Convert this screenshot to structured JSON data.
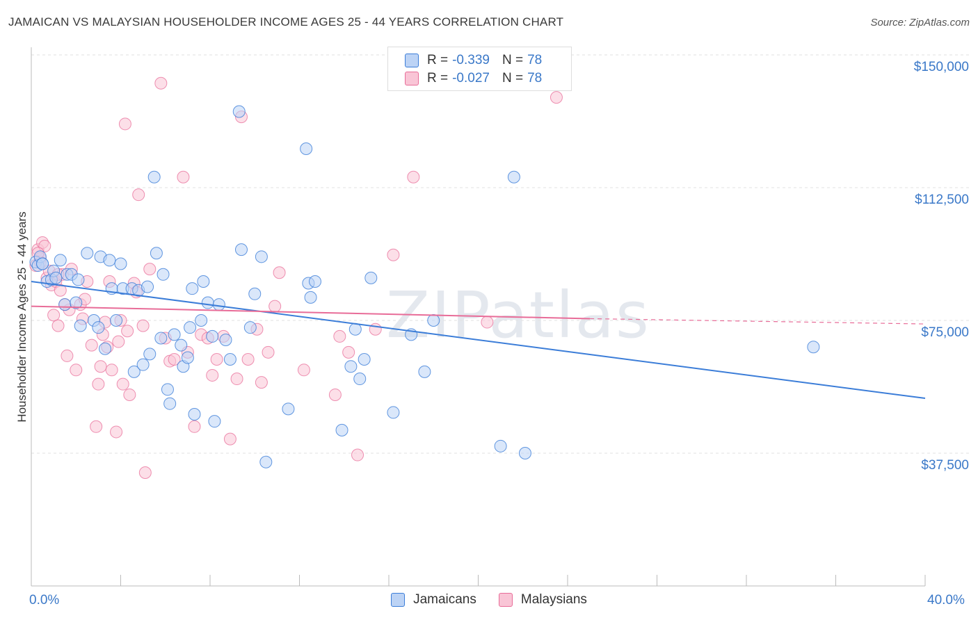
{
  "title": "JAMAICAN VS MALAYSIAN HOUSEHOLDER INCOME AGES 25 - 44 YEARS CORRELATION CHART",
  "source": "Source: ZipAtlas.com",
  "watermark": "ZIPatlas",
  "legend_top": [
    {
      "r_label": "R =",
      "r_value": "-0.339",
      "n_label": "N =",
      "n_value": "78"
    },
    {
      "r_label": "R =",
      "r_value": "-0.027",
      "n_label": "N =",
      "n_value": "78"
    }
  ],
  "legend_bottom": [
    "Jamaicans",
    "Malaysians"
  ],
  "colors": {
    "jamaicans": "#3b7dd8",
    "malaysians": "#e86c98",
    "jam_fill": "#bcd3f5",
    "mal_fill": "#f9c5d6",
    "tick_text": "#3a78c8",
    "grid": "#e2e2e2"
  },
  "chart_data": {
    "type": "scatter",
    "xlabel": "",
    "ylabel": "Householder Income Ages 25 - 44 years",
    "xlim": [
      0,
      40
    ],
    "ylim": [
      0,
      150000
    ],
    "x_tick_labels": [
      "0.0%",
      "40.0%"
    ],
    "y_ticks": [
      37500,
      75000,
      112500,
      150000
    ],
    "y_tick_labels": [
      "$37,500",
      "$75,000",
      "$112,500",
      "$150,000"
    ],
    "grid": true,
    "series": [
      {
        "name": "Jamaicans",
        "r": -0.339,
        "n": 78,
        "trend": {
          "x": [
            0,
            40
          ],
          "y": [
            86000,
            53000
          ]
        },
        "points": [
          [
            0.2,
            91500
          ],
          [
            0.3,
            90500
          ],
          [
            0.4,
            93000
          ],
          [
            0.5,
            91000
          ],
          [
            0.7,
            86000
          ],
          [
            0.9,
            86500
          ],
          [
            1.0,
            89000
          ],
          [
            1.1,
            87000
          ],
          [
            1.3,
            92000
          ],
          [
            1.5,
            79500
          ],
          [
            1.6,
            88000
          ],
          [
            1.8,
            88000
          ],
          [
            2.0,
            80000
          ],
          [
            2.2,
            73500
          ],
          [
            2.5,
            94000
          ],
          [
            2.8,
            75000
          ],
          [
            3.0,
            73000
          ],
          [
            3.1,
            93000
          ],
          [
            3.3,
            67000
          ],
          [
            3.5,
            92000
          ],
          [
            3.6,
            84000
          ],
          [
            3.8,
            75000
          ],
          [
            4.0,
            91000
          ],
          [
            4.1,
            84000
          ],
          [
            4.5,
            84000
          ],
          [
            4.6,
            60500
          ],
          [
            4.8,
            83500
          ],
          [
            5.0,
            62500
          ],
          [
            5.2,
            84500
          ],
          [
            5.3,
            65500
          ],
          [
            5.5,
            115500
          ],
          [
            5.6,
            94000
          ],
          [
            5.8,
            70000
          ],
          [
            5.9,
            88000
          ],
          [
            6.1,
            55500
          ],
          [
            6.2,
            51500
          ],
          [
            6.4,
            71000
          ],
          [
            6.7,
            68000
          ],
          [
            6.8,
            62000
          ],
          [
            7.0,
            64500
          ],
          [
            7.1,
            73000
          ],
          [
            7.2,
            84000
          ],
          [
            7.3,
            48500
          ],
          [
            7.6,
            75000
          ],
          [
            7.7,
            86000
          ],
          [
            7.9,
            80000
          ],
          [
            8.1,
            70500
          ],
          [
            8.2,
            46500
          ],
          [
            8.4,
            79500
          ],
          [
            8.7,
            69500
          ],
          [
            8.9,
            64000
          ],
          [
            9.4,
            95000
          ],
          [
            9.8,
            73000
          ],
          [
            10.0,
            82500
          ],
          [
            10.3,
            93000
          ],
          [
            10.5,
            35000
          ],
          [
            11.5,
            50000
          ],
          [
            12.3,
            123500
          ],
          [
            12.4,
            85500
          ],
          [
            12.5,
            81500
          ],
          [
            12.7,
            86000
          ],
          [
            13.9,
            44000
          ],
          [
            14.3,
            62000
          ],
          [
            14.5,
            72500
          ],
          [
            14.7,
            58500
          ],
          [
            14.9,
            64000
          ],
          [
            15.2,
            87000
          ],
          [
            16.2,
            49000
          ],
          [
            17.0,
            71000
          ],
          [
            17.6,
            60500
          ],
          [
            18.0,
            75000
          ],
          [
            21.0,
            39500
          ],
          [
            21.6,
            115500
          ],
          [
            22.1,
            37500
          ],
          [
            35.0,
            67500
          ],
          [
            9.3,
            134000
          ],
          [
            0.5,
            91000
          ],
          [
            2.1,
            86500
          ]
        ]
      },
      {
        "name": "Malaysians",
        "r": -0.027,
        "n": 78,
        "trend": {
          "x": [
            0,
            25
          ],
          "y": [
            79000,
            75500
          ]
        },
        "trend_dashed": {
          "x": [
            25,
            40
          ],
          "y": [
            75500,
            74000
          ]
        },
        "points": [
          [
            0.2,
            90500
          ],
          [
            0.3,
            95000
          ],
          [
            0.4,
            92500
          ],
          [
            0.5,
            97000
          ],
          [
            0.6,
            96000
          ],
          [
            0.7,
            87000
          ],
          [
            0.8,
            89000
          ],
          [
            0.9,
            85000
          ],
          [
            1.0,
            76500
          ],
          [
            1.1,
            86000
          ],
          [
            1.2,
            73500
          ],
          [
            1.3,
            83500
          ],
          [
            1.4,
            88000
          ],
          [
            1.6,
            65000
          ],
          [
            1.7,
            78000
          ],
          [
            1.8,
            89500
          ],
          [
            2.0,
            61000
          ],
          [
            2.2,
            79500
          ],
          [
            2.3,
            75500
          ],
          [
            2.5,
            86000
          ],
          [
            2.7,
            68000
          ],
          [
            2.9,
            45000
          ],
          [
            3.0,
            57000
          ],
          [
            3.1,
            62000
          ],
          [
            3.2,
            71000
          ],
          [
            3.3,
            74500
          ],
          [
            3.4,
            67500
          ],
          [
            3.5,
            86000
          ],
          [
            3.6,
            61000
          ],
          [
            3.8,
            43500
          ],
          [
            4.0,
            75000
          ],
          [
            4.1,
            57000
          ],
          [
            4.2,
            130500
          ],
          [
            4.3,
            72000
          ],
          [
            4.4,
            54000
          ],
          [
            4.6,
            85500
          ],
          [
            4.7,
            83000
          ],
          [
            4.8,
            110500
          ],
          [
            5.1,
            32000
          ],
          [
            5.3,
            89500
          ],
          [
            5.8,
            142000
          ],
          [
            6.2,
            63500
          ],
          [
            6.4,
            64000
          ],
          [
            6.8,
            115500
          ],
          [
            7.3,
            45000
          ],
          [
            7.6,
            71000
          ],
          [
            7.9,
            70000
          ],
          [
            8.1,
            59500
          ],
          [
            8.3,
            64000
          ],
          [
            8.6,
            70500
          ],
          [
            8.9,
            41500
          ],
          [
            9.2,
            58500
          ],
          [
            9.4,
            132500
          ],
          [
            9.7,
            64000
          ],
          [
            10.1,
            72500
          ],
          [
            10.3,
            57500
          ],
          [
            10.6,
            66000
          ],
          [
            10.9,
            79000
          ],
          [
            11.1,
            88500
          ],
          [
            12.2,
            61000
          ],
          [
            13.6,
            54000
          ],
          [
            13.8,
            70500
          ],
          [
            14.2,
            66000
          ],
          [
            14.6,
            37000
          ],
          [
            15.4,
            72500
          ],
          [
            16.2,
            93500
          ],
          [
            17.1,
            115500
          ],
          [
            20.4,
            74500
          ],
          [
            23.5,
            138000
          ],
          [
            0.4,
            91500
          ],
          [
            1.5,
            79500
          ],
          [
            2.4,
            81000
          ],
          [
            5.0,
            73500
          ],
          [
            6.0,
            70000
          ],
          [
            0.3,
            94000
          ],
          [
            1.2,
            88000
          ],
          [
            3.9,
            69000
          ],
          [
            7.0,
            66000
          ]
        ]
      }
    ]
  }
}
